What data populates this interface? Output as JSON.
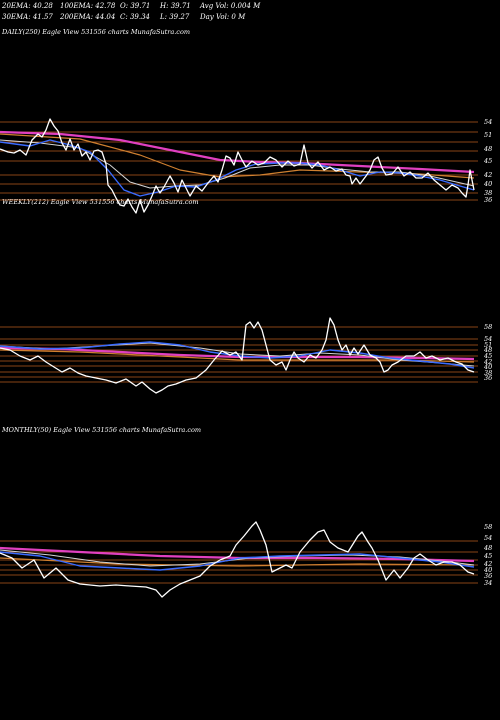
{
  "header": {
    "row1": [
      {
        "text": "20EMA: 40.28"
      },
      {
        "text": "100EMA: 42.78"
      },
      {
        "text": "O: 39.71"
      },
      {
        "text": "H: 39.71"
      },
      {
        "text": "Avg Vol: 0.004 M"
      }
    ],
    "row2": [
      {
        "text": "30EMA: 41.57"
      },
      {
        "text": "200EMA: 44.04"
      },
      {
        "text": "C: 39.34"
      },
      {
        "text": "L: 39.27"
      },
      {
        "text": "Day Vol: 0  M"
      }
    ]
  },
  "chart_data": [
    {
      "type": "line",
      "title": "DAILY(250) Eagle  View  531556  charts MunafaSutra.com",
      "ticks": [
        "54",
        "51",
        "48",
        "45",
        "42",
        "40",
        "38",
        "36"
      ],
      "line_colors": {
        "price": "#ffffff",
        "ema20": "#3a6bff",
        "ema30": "#d4d4d4",
        "ema100": "#d08030",
        "ema200": "#e040c0",
        "levels": "#b45a1e"
      }
    },
    {
      "type": "line",
      "title": "WEEKLY(212) Eagle  View  531556  charts MunafaSutra.com",
      "ticks": [
        "58",
        "54",
        "51",
        "48",
        "45",
        "42",
        "40",
        "38",
        "36"
      ],
      "line_colors": {
        "price": "#ffffff",
        "ema20": "#3a6bff",
        "ema30": "#d4d4d4",
        "ema100": "#d08030",
        "ema200": "#e040c0",
        "levels": "#b45a1e"
      }
    },
    {
      "type": "line",
      "title": "MONTHLY(50) Eagle  View  531556  charts MunafaSutra.com",
      "ticks": [
        "58",
        "54",
        "48",
        "45",
        "42",
        "40",
        "36",
        "34"
      ],
      "line_colors": {
        "price": "#ffffff",
        "ema20": "#3a6bff",
        "ema30": "#d4d4d4",
        "ema100": "#d08030",
        "ema200": "#e040c0",
        "levels": "#b45a1e"
      }
    }
  ]
}
